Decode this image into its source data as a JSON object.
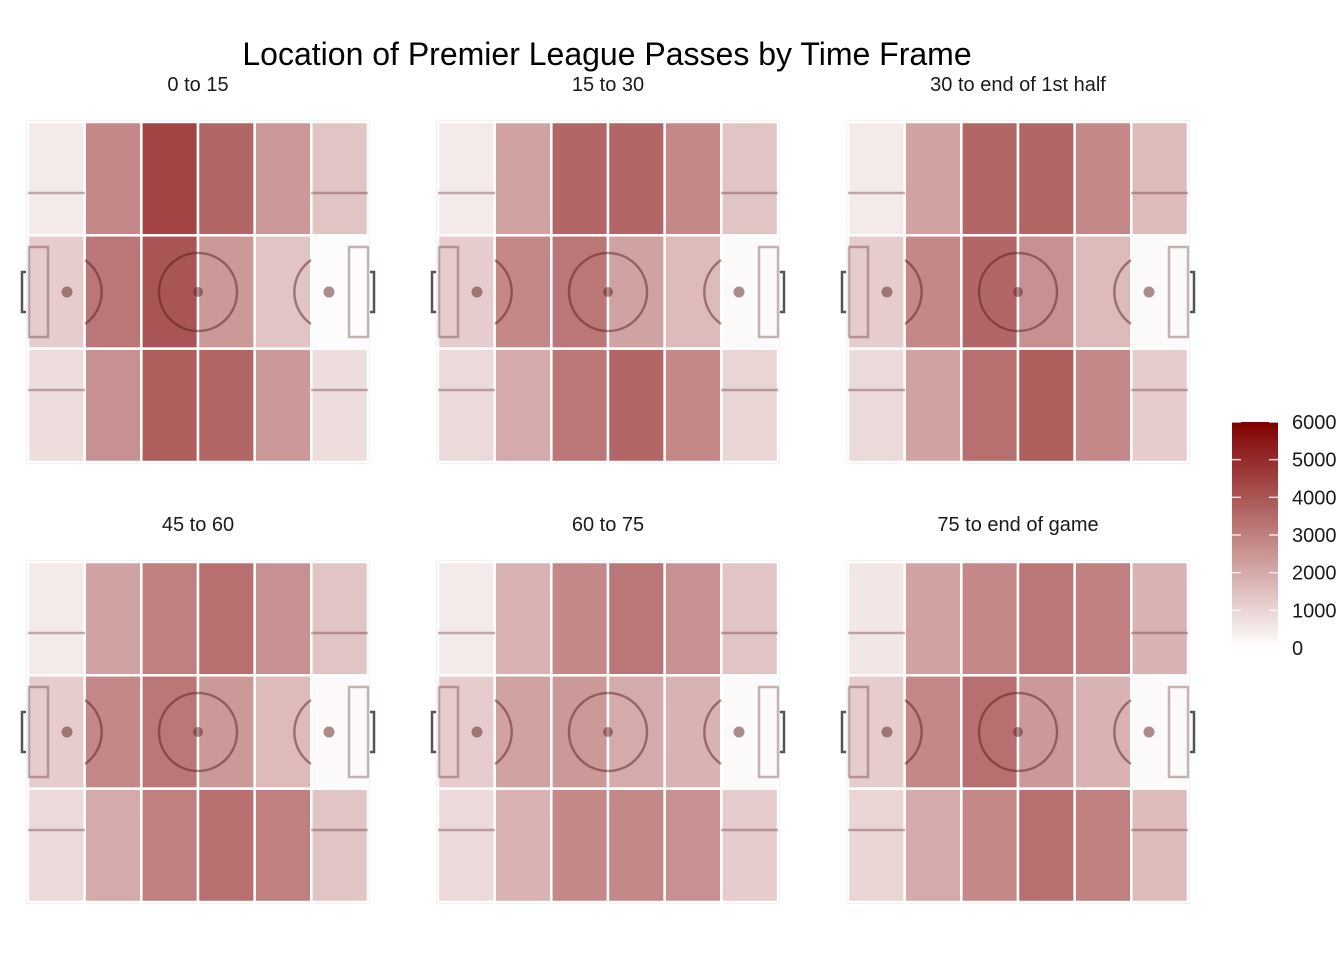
{
  "chart_data": {
    "type": "heatmap",
    "title": "Location of Premier League Passes by Time Frame",
    "grid": {
      "rows": 3,
      "cols": 6
    },
    "facets": [
      {
        "label": "0 to 15",
        "values": [
          [
            500,
            2800,
            4400,
            3600,
            2400,
            1400
          ],
          [
            1200,
            3200,
            4000,
            2400,
            1400,
            100
          ],
          [
            800,
            2600,
            3800,
            3600,
            2400,
            800
          ]
        ]
      },
      {
        "label": "15 to 30",
        "values": [
          [
            500,
            2200,
            3600,
            3600,
            2800,
            1400
          ],
          [
            1200,
            2800,
            3200,
            2200,
            1600,
            150
          ],
          [
            900,
            2000,
            3200,
            3600,
            2800,
            1000
          ]
        ]
      },
      {
        "label": "30 to end of 1st half",
        "values": [
          [
            500,
            2200,
            3600,
            3600,
            2800,
            1600
          ],
          [
            1200,
            2800,
            3600,
            2600,
            1600,
            150
          ],
          [
            900,
            2200,
            3400,
            3800,
            2800,
            1200
          ]
        ]
      },
      {
        "label": "45 to 60",
        "values": [
          [
            500,
            2200,
            3000,
            3400,
            2600,
            1400
          ],
          [
            1200,
            2800,
            3200,
            2400,
            1600,
            150
          ],
          [
            900,
            2000,
            3000,
            3400,
            3000,
            1400
          ]
        ]
      },
      {
        "label": "60 to 75",
        "values": [
          [
            500,
            1800,
            2800,
            3200,
            2600,
            1400
          ],
          [
            1200,
            2200,
            2400,
            2000,
            1800,
            150
          ],
          [
            900,
            1800,
            2800,
            2800,
            2600,
            1200
          ]
        ]
      },
      {
        "label": "75 to end of game",
        "values": [
          [
            600,
            2200,
            2800,
            3200,
            3000,
            1800
          ],
          [
            1200,
            2800,
            3400,
            2400,
            1800,
            150
          ],
          [
            1000,
            2000,
            2800,
            3400,
            3000,
            1600
          ]
        ]
      }
    ],
    "legend": {
      "position": "right",
      "min": 0,
      "max": 6000,
      "ticks": [
        "0",
        "1000",
        "2000",
        "3000",
        "4000",
        "5000",
        "6000"
      ]
    },
    "colors": {
      "low": "#ffffff",
      "high": "#800000",
      "line": "#ffffff"
    },
    "grid_lines": false
  }
}
